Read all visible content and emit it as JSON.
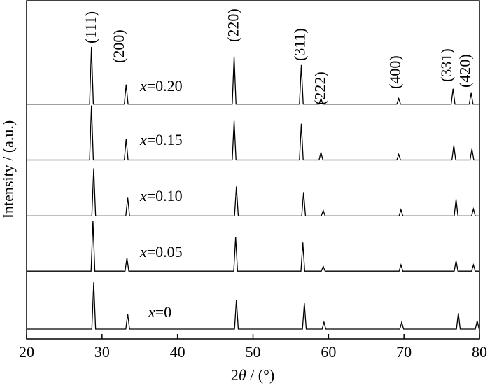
{
  "chart_data": {
    "type": "line",
    "xlabel": "2θ / (°)",
    "ylabel": "Intensity / (a.u.)",
    "xlim": [
      20,
      80
    ],
    "xticks": [
      20,
      30,
      40,
      50,
      60,
      70,
      80
    ],
    "ylim": [
      0,
      484
    ],
    "series": [
      {
        "name": "x=0",
        "color": "#000000",
        "x": [
          20,
          28.65,
          28.9,
          29.15,
          33.15,
          33.4,
          33.65,
          47.55,
          47.8,
          48.05,
          56.55,
          56.8,
          57.05,
          59.15,
          59.4,
          59.65,
          69.45,
          69.7,
          69.95,
          76.95,
          77.2,
          77.45,
          79.45,
          79.7,
          79.95,
          80
        ],
        "values": [
          14,
          14,
          81,
          14,
          14,
          36,
          14,
          14,
          56,
          14,
          14,
          51,
          14,
          14,
          24,
          14,
          14,
          24,
          14,
          14,
          37,
          14,
          14,
          26,
          14,
          14
        ]
      },
      {
        "name": "x=0.05",
        "color": "#000000",
        "x": [
          20,
          28.55,
          28.8,
          29.05,
          33.05,
          33.3,
          33.55,
          47.45,
          47.7,
          47.95,
          56.35,
          56.6,
          56.85,
          59.05,
          59.3,
          59.55,
          69.35,
          69.6,
          69.85,
          76.65,
          76.9,
          77.15,
          78.95,
          79.2,
          79.45,
          80
        ],
        "values": [
          97,
          97,
          169,
          97,
          97,
          116,
          97,
          97,
          146,
          97,
          97,
          138,
          97,
          97,
          104,
          97,
          97,
          106,
          97,
          97,
          112,
          97,
          97,
          106,
          97,
          97
        ]
      },
      {
        "name": "x=0.10",
        "color": "#000000",
        "x": [
          20,
          28.65,
          28.9,
          29.15,
          33.15,
          33.4,
          33.65,
          47.55,
          47.8,
          48.05,
          56.45,
          56.7,
          56.95,
          59.05,
          59.3,
          59.55,
          69.35,
          69.6,
          69.85,
          76.65,
          76.9,
          77.15,
          78.95,
          79.2,
          79.45,
          80
        ],
        "values": [
          176,
          176,
          244,
          176,
          176,
          203,
          176,
          176,
          218,
          176,
          176,
          210,
          176,
          176,
          184,
          176,
          176,
          185,
          176,
          176,
          200,
          176,
          176,
          186,
          176,
          176
        ]
      },
      {
        "name": "x=0.15",
        "color": "#000000",
        "x": [
          20,
          28.35,
          28.6,
          28.85,
          32.95,
          33.2,
          33.45,
          47.25,
          47.5,
          47.75,
          56.15,
          56.4,
          56.65,
          58.75,
          59,
          59.25,
          69.05,
          69.3,
          69.55,
          76.35,
          76.6,
          76.85,
          78.75,
          79,
          79.25,
          80
        ],
        "values": [
          256,
          256,
          334,
          256,
          256,
          286,
          256,
          256,
          312,
          256,
          256,
          308,
          256,
          256,
          267,
          256,
          256,
          264,
          256,
          256,
          277,
          256,
          256,
          272,
          256,
          256
        ]
      },
      {
        "name": "x=0.20",
        "color": "#000000",
        "x": [
          20,
          28.35,
          28.6,
          28.85,
          32.95,
          33.2,
          33.45,
          47.25,
          47.5,
          47.75,
          56.15,
          56.4,
          56.65,
          58.75,
          59,
          59.25,
          69.05,
          69.3,
          69.55,
          76.25,
          76.5,
          76.75,
          78.65,
          78.9,
          79.15,
          80
        ],
        "values": [
          336,
          336,
          418,
          336,
          336,
          364,
          336,
          336,
          404,
          336,
          336,
          392,
          336,
          336,
          344,
          336,
          336,
          344,
          336,
          336,
          358,
          336,
          336,
          352,
          336,
          336
        ]
      }
    ],
    "peak_labels": [
      {
        "label": "(111)",
        "x": 28.7
      },
      {
        "label": "(200)",
        "x": 32.4
      },
      {
        "label": "(220)",
        "x": 47.6
      },
      {
        "label": "(311)",
        "x": 56.4
      },
      {
        "label": "(222)",
        "x": 59.1
      },
      {
        "label": "(400)",
        "x": 69.0
      },
      {
        "label": "(331)",
        "x": 75.8
      },
      {
        "label": "(420)",
        "x": 78.3
      }
    ]
  }
}
